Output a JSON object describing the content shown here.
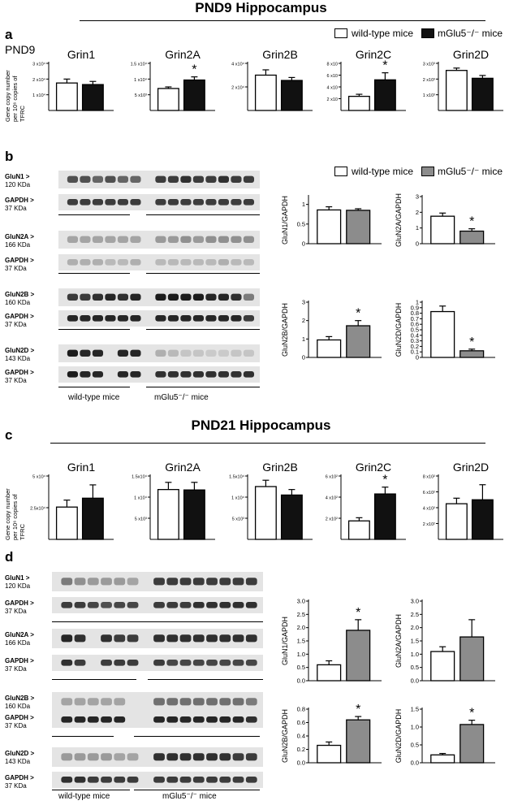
{
  "figure": {
    "title_pnd9": "PND9 Hippocampus",
    "title_pnd21": "PND21 Hippocampus",
    "panel_a": "a",
    "panel_b": "b",
    "panel_c": "c",
    "panel_d": "d",
    "pnd9_label": "PND9",
    "qpcr_ylabel": "Gene copy number per 10⁶ copies of TFRC",
    "legend_a": {
      "wt": "wild-type mice",
      "ko": "mGlu5⁻/⁻ mice",
      "wt_color": "#ffffff",
      "ko_color": "#111111"
    },
    "legend_b": {
      "wt": "wild-type mice",
      "ko": "mGlu5⁻/⁻ mice",
      "wt_color": "#ffffff",
      "ko_color": "#8c8c8c"
    },
    "blot_groups": {
      "wt": "wild-type mice",
      "ko": "mGlu5⁻/⁻ mice"
    },
    "blots_b": [
      {
        "protein": "GluN1",
        "kda": "120 KDa",
        "gapdh": "GAPDH",
        "gapdh_kda": "37 KDa"
      },
      {
        "protein": "GluN2A",
        "kda": "166 KDa",
        "gapdh": "GAPDH",
        "gapdh_kda": "37 KDa"
      },
      {
        "protein": "GluN2B",
        "kda": "160 KDa",
        "gapdh": "GAPDH",
        "gapdh_kda": "37 KDa"
      },
      {
        "protein": "GluN2D",
        "kda": "143 KDa",
        "gapdh": "GAPDH",
        "gapdh_kda": "37 KDa"
      }
    ],
    "blots_d": [
      {
        "protein": "GluN1",
        "kda": "120 KDa",
        "gapdh": "GAPDH",
        "gapdh_kda": "37 KDa"
      },
      {
        "protein": "GluN2A",
        "kda": "166 KDa",
        "gapdh": "GAPDH",
        "gapdh_kda": "37 KDa"
      },
      {
        "protein": "GluN2B",
        "kda": "160 KDa",
        "gapdh": "GAPDH",
        "gapdh_kda": "37 KDa"
      },
      {
        "protein": "GluN2D",
        "kda": "143 KDa",
        "gapdh": "GAPDH",
        "gapdh_kda": "37 KDa"
      }
    ]
  },
  "chart_data": [
    {
      "type": "bar",
      "panel": "a",
      "title": "Grin1",
      "ticks": [
        {
          "v": 1,
          "t": "1 x10⁴"
        },
        {
          "v": 2,
          "t": "2 x10⁴"
        },
        {
          "v": 3,
          "t": "3 x10⁴"
        }
      ],
      "ylim": [
        0,
        3
      ],
      "values": [
        1.75,
        1.65
      ],
      "errors": [
        0.25,
        0.2
      ],
      "sig": false
    },
    {
      "type": "bar",
      "panel": "a",
      "title": "Grin2A",
      "ticks": [
        {
          "v": 0.5,
          "t": "5 x10³"
        },
        {
          "v": 1,
          "t": "1 x10⁴"
        },
        {
          "v": 1.5,
          "t": "1.5 x10⁴"
        }
      ],
      "ylim": [
        0,
        1.5
      ],
      "values": [
        0.7,
        0.97
      ],
      "errors": [
        0.05,
        0.1
      ],
      "sig": true
    },
    {
      "type": "bar",
      "panel": "a",
      "title": "Grin2B",
      "ticks": [
        {
          "v": 2,
          "t": "2 x10⁴"
        },
        {
          "v": 4,
          "t": "4 x10⁴"
        }
      ],
      "ylim": [
        0,
        4
      ],
      "values": [
        3.0,
        2.55
      ],
      "errors": [
        0.45,
        0.25
      ],
      "sig": false
    },
    {
      "type": "bar",
      "panel": "a",
      "title": "Grin2C",
      "ticks": [
        {
          "v": 2,
          "t": "2 x10"
        },
        {
          "v": 4,
          "t": "4 x10"
        },
        {
          "v": 6,
          "t": "6 x10"
        },
        {
          "v": 8,
          "t": "8 x10"
        }
      ],
      "ylim": [
        0,
        8
      ],
      "values": [
        2.4,
        5.2
      ],
      "errors": [
        0.35,
        1.2
      ],
      "sig": true
    },
    {
      "type": "bar",
      "panel": "a",
      "title": "Grin2D",
      "ticks": [
        {
          "v": 1,
          "t": "1 x10³"
        },
        {
          "v": 2,
          "t": "2 x10³"
        },
        {
          "v": 3,
          "t": "3 x10³"
        }
      ],
      "ylim": [
        0,
        3
      ],
      "values": [
        2.55,
        2.05
      ],
      "errors": [
        0.15,
        0.18
      ],
      "sig": false
    },
    {
      "type": "bar",
      "panel": "b",
      "ylabel": "GluN1/GAPDH",
      "ticks": [
        {
          "v": 0,
          "t": "0"
        },
        {
          "v": 0.5,
          "t": "0.5"
        },
        {
          "v": 1,
          "t": "1"
        }
      ],
      "ylim": [
        0,
        1.2
      ],
      "values": [
        0.86,
        0.85
      ],
      "errors": [
        0.08,
        0.04
      ],
      "sig": false
    },
    {
      "type": "bar",
      "panel": "b",
      "ylabel": "GluN2A/GAPDH",
      "ticks": [
        {
          "v": 0,
          "t": "0"
        },
        {
          "v": 1,
          "t": "1"
        },
        {
          "v": 2,
          "t": "2"
        },
        {
          "v": 3,
          "t": "3"
        }
      ],
      "ylim": [
        0,
        3
      ],
      "values": [
        1.75,
        0.8
      ],
      "errors": [
        0.2,
        0.15
      ],
      "sig": true
    },
    {
      "type": "bar",
      "panel": "b",
      "ylabel": "GluN2B/GAPDH",
      "ticks": [
        {
          "v": 0,
          "t": "0"
        },
        {
          "v": 1,
          "t": "1"
        },
        {
          "v": 2,
          "t": "2"
        },
        {
          "v": 3,
          "t": "3"
        }
      ],
      "ylim": [
        0,
        3
      ],
      "values": [
        0.95,
        1.72
      ],
      "errors": [
        0.18,
        0.28
      ],
      "sig": true
    },
    {
      "type": "bar",
      "panel": "b",
      "ylabel": "GluN2D/GAPDH",
      "ticks": [
        {
          "v": 0,
          "t": "0"
        },
        {
          "v": 0.1,
          "t": "0.1"
        },
        {
          "v": 0.2,
          "t": "0.2"
        },
        {
          "v": 0.3,
          "t": "0.3"
        },
        {
          "v": 0.4,
          "t": "0.4"
        },
        {
          "v": 0.5,
          "t": "0.5"
        },
        {
          "v": 0.6,
          "t": "0.6"
        },
        {
          "v": 0.7,
          "t": "0.7"
        },
        {
          "v": 0.8,
          "t": "0.8"
        },
        {
          "v": 0.9,
          "t": "0.9"
        },
        {
          "v": 1,
          "t": "1"
        }
      ],
      "ylim": [
        0,
        1
      ],
      "values": [
        0.83,
        0.12
      ],
      "errors": [
        0.1,
        0.03
      ],
      "sig": true
    },
    {
      "type": "bar",
      "panel": "c",
      "title": "Grin1",
      "ticks": [
        {
          "v": 2.5,
          "t": "2.5x10⁴"
        },
        {
          "v": 5,
          "t": "5 x10⁴"
        }
      ],
      "ylim": [
        0,
        5
      ],
      "values": [
        2.55,
        3.25
      ],
      "errors": [
        0.55,
        1.05
      ],
      "sig": false
    },
    {
      "type": "bar",
      "panel": "c",
      "title": "Grin2A",
      "ticks": [
        {
          "v": 0.5,
          "t": "5 x10³"
        },
        {
          "v": 1,
          "t": "1 x10⁴"
        },
        {
          "v": 1.5,
          "t": "1.5x10⁴"
        }
      ],
      "ylim": [
        0,
        1.5
      ],
      "values": [
        1.18,
        1.17
      ],
      "errors": [
        0.17,
        0.18
      ],
      "sig": false
    },
    {
      "type": "bar",
      "panel": "c",
      "title": "Grin2B",
      "ticks": [
        {
          "v": 0.5,
          "t": "5 x10³"
        },
        {
          "v": 1,
          "t": "1 x10⁴"
        },
        {
          "v": 1.5,
          "t": "1.5x10⁴"
        }
      ],
      "ylim": [
        0,
        1.5
      ],
      "values": [
        1.25,
        1.05
      ],
      "errors": [
        0.15,
        0.13
      ],
      "sig": false
    },
    {
      "type": "bar",
      "panel": "c",
      "title": "Grin2C",
      "ticks": [
        {
          "v": 2,
          "t": "2 x10²"
        },
        {
          "v": 4,
          "t": "4 x10²"
        },
        {
          "v": 6,
          "t": "6 x10²"
        }
      ],
      "ylim": [
        0,
        6
      ],
      "values": [
        1.75,
        4.3
      ],
      "errors": [
        0.3,
        0.65
      ],
      "sig": true
    },
    {
      "type": "bar",
      "panel": "c",
      "title": "Grin2D",
      "ticks": [
        {
          "v": 2,
          "t": "2 x10²"
        },
        {
          "v": 4,
          "t": "4 x10²"
        },
        {
          "v": 6,
          "t": "6 x10²"
        },
        {
          "v": 8,
          "t": "8 x10²"
        }
      ],
      "ylim": [
        0,
        8
      ],
      "values": [
        4.5,
        5.0
      ],
      "errors": [
        0.7,
        1.9
      ],
      "sig": false
    },
    {
      "type": "bar",
      "panel": "d",
      "ylabel": "GluN1/GAPDH",
      "ticks": [
        {
          "v": 0,
          "t": "0.0"
        },
        {
          "v": 0.5,
          "t": "0.5"
        },
        {
          "v": 1,
          "t": "1.0"
        },
        {
          "v": 1.5,
          "t": "1.5"
        },
        {
          "v": 2,
          "t": "2.0"
        },
        {
          "v": 2.5,
          "t": "2.5"
        },
        {
          "v": 3,
          "t": "3.0"
        }
      ],
      "ylim": [
        0,
        3
      ],
      "values": [
        0.6,
        1.9
      ],
      "errors": [
        0.15,
        0.4
      ],
      "sig": true
    },
    {
      "type": "bar",
      "panel": "d",
      "ylabel": "GluN2A/GAPDH",
      "ticks": [
        {
          "v": 0,
          "t": "0.0"
        },
        {
          "v": 0.5,
          "t": "0.5"
        },
        {
          "v": 1,
          "t": "1.0"
        },
        {
          "v": 1.5,
          "t": "1.5"
        },
        {
          "v": 2,
          "t": "2.0"
        },
        {
          "v": 2.5,
          "t": "2.5"
        },
        {
          "v": 3,
          "t": "3.0"
        }
      ],
      "ylim": [
        0,
        3
      ],
      "values": [
        1.1,
        1.65
      ],
      "errors": [
        0.18,
        0.65
      ],
      "sig": false
    },
    {
      "type": "bar",
      "panel": "d",
      "ylabel": "GluN2B/GAPDH",
      "ticks": [
        {
          "v": 0,
          "t": "0.0"
        },
        {
          "v": 0.2,
          "t": "0.2"
        },
        {
          "v": 0.4,
          "t": "0.4"
        },
        {
          "v": 0.6,
          "t": "0.6"
        },
        {
          "v": 0.8,
          "t": "0.8"
        }
      ],
      "ylim": [
        0,
        0.8
      ],
      "values": [
        0.26,
        0.64
      ],
      "errors": [
        0.05,
        0.05
      ],
      "sig": true
    },
    {
      "type": "bar",
      "panel": "d",
      "ylabel": "GluN2D/GAPDH",
      "ticks": [
        {
          "v": 0,
          "t": "0.0"
        },
        {
          "v": 0.5,
          "t": "0.5"
        },
        {
          "v": 1,
          "t": "1.0"
        },
        {
          "v": 1.5,
          "t": "1.5"
        }
      ],
      "ylim": [
        0,
        1.5
      ],
      "values": [
        0.22,
        1.07
      ],
      "errors": [
        0.04,
        0.12
      ],
      "sig": true
    }
  ]
}
